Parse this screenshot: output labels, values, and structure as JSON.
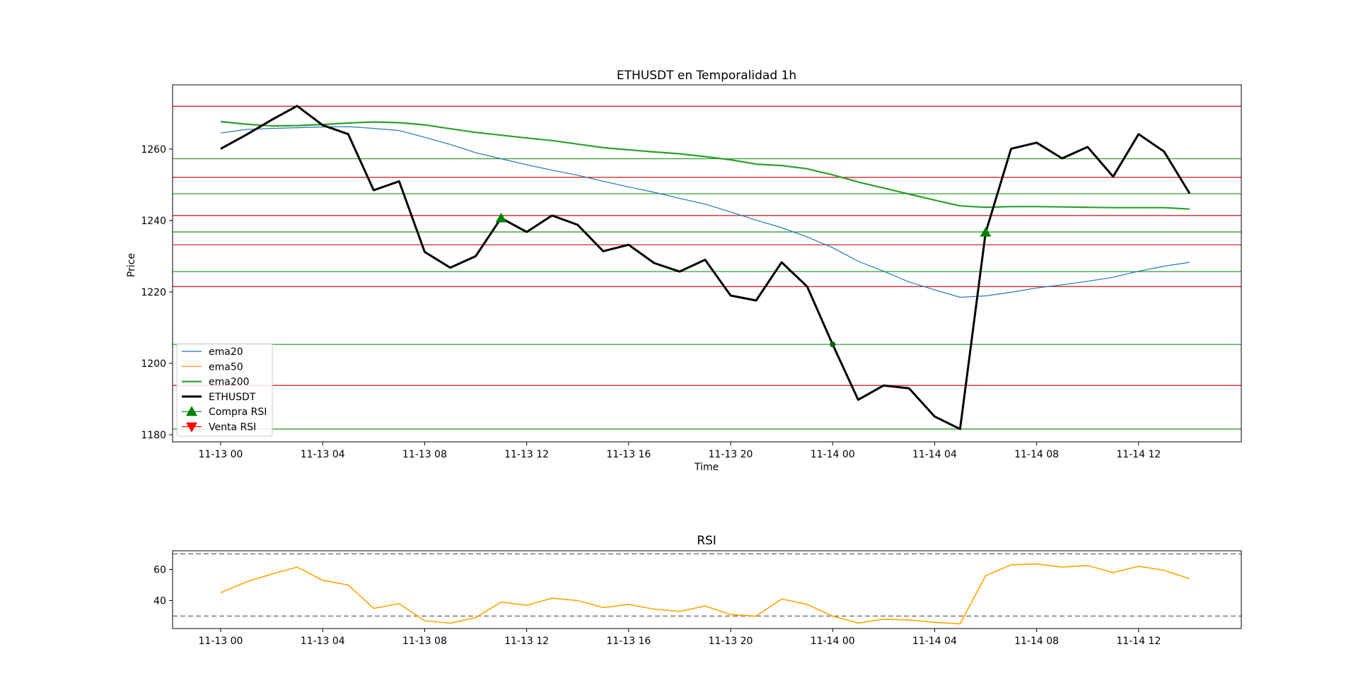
{
  "chart_data": [
    {
      "type": "line",
      "title": "ETHUSDT en Temporalidad 1h",
      "xlabel": "Time",
      "ylabel": "Price",
      "x_start": "2022-11-13 00:00",
      "x_end": "2022-11-14 14:00",
      "x_ticks": [
        "11-13 00",
        "11-13 04",
        "11-13 08",
        "11-13 12",
        "11-13 16",
        "11-13 20",
        "11-14 00",
        "11-14 04",
        "11-14 08",
        "11-14 12"
      ],
      "ylim": [
        1178,
        1278
      ],
      "y_ticks": [
        1180,
        1200,
        1220,
        1240,
        1260
      ],
      "grid": false,
      "legend_position": "lower-left",
      "series": [
        {
          "name": "ema20",
          "color": "#1f77b4",
          "width": 1.2,
          "values": [
            1264.5,
            1265.5,
            1265.8,
            1266.0,
            1266.2,
            1266.3,
            1265.8,
            1265.2,
            1263.3,
            1261.3,
            1259.0,
            1257.3,
            1255.6,
            1254.1,
            1252.7,
            1251.0,
            1249.4,
            1247.9,
            1246.2,
            1244.6,
            1242.4,
            1240.1,
            1238.0,
            1235.4,
            1232.4,
            1228.6,
            1225.8,
            1222.8,
            1220.6,
            1218.5,
            1218.9,
            1219.9,
            1221.1,
            1222.0,
            1223.0,
            1224.1,
            1225.8,
            1227.2,
            1228.3
          ]
        },
        {
          "name": "ema50",
          "color": "#ff7f0e",
          "width": 1.2,
          "values": []
        },
        {
          "name": "ema200",
          "color": "#2ca02c",
          "width": 2.2,
          "values": [
            1267.7,
            1267.0,
            1266.5,
            1266.6,
            1266.9,
            1267.3,
            1267.6,
            1267.4,
            1266.8,
            1265.7,
            1264.7,
            1263.9,
            1263.1,
            1262.4,
            1261.4,
            1260.4,
            1259.8,
            1259.2,
            1258.7,
            1257.9,
            1257.0,
            1255.8,
            1255.4,
            1254.5,
            1252.8,
            1250.8,
            1249.1,
            1247.4,
            1245.7,
            1244.1,
            1243.7,
            1243.9,
            1243.9,
            1243.8,
            1243.7,
            1243.6,
            1243.6,
            1243.6,
            1243.2
          ]
        },
        {
          "name": "ETHUSDT",
          "color": "#000000",
          "width": 3,
          "values": [
            1260.1,
            1264.0,
            1268.2,
            1272.1,
            1266.7,
            1264.2,
            1248.5,
            1251.0,
            1231.2,
            1226.8,
            1230.0,
            1240.7,
            1236.8,
            1241.4,
            1238.8,
            1231.4,
            1233.2,
            1228.1,
            1225.7,
            1229.0,
            1219.0,
            1217.6,
            1228.3,
            1221.5,
            1205.3,
            1189.8,
            1193.8,
            1193.0,
            1185.1,
            1181.6,
            1236.6,
            1260.1,
            1261.8,
            1257.4,
            1260.6,
            1252.3,
            1264.2,
            1259.3,
            1247.6
          ]
        }
      ],
      "markers": [
        {
          "name": "Compra RSI",
          "shape": "triangle-up",
          "color": "#008000",
          "points": [
            {
              "x": 11,
              "y": 1240.6
            },
            {
              "x": 30,
              "y": 1236.6
            }
          ]
        },
        {
          "name": "Venta RSI",
          "shape": "triangle-down",
          "color": "#ff0000",
          "points": []
        }
      ],
      "extra_points": [
        {
          "x": 24,
          "y": 1205.3,
          "color": "#006400"
        }
      ],
      "hlines": [
        {
          "y": 1272.0,
          "color": "#d62728"
        },
        {
          "y": 1257.3,
          "color": "#2ca02c"
        },
        {
          "y": 1252.1,
          "color": "#d62728"
        },
        {
          "y": 1247.5,
          "color": "#2ca02c"
        },
        {
          "y": 1241.4,
          "color": "#d62728"
        },
        {
          "y": 1236.8,
          "color": "#2ca02c"
        },
        {
          "y": 1233.2,
          "color": "#d62728"
        },
        {
          "y": 1225.7,
          "color": "#2ca02c"
        },
        {
          "y": 1221.5,
          "color": "#d62728"
        },
        {
          "y": 1205.3,
          "color": "#2ca02c"
        },
        {
          "y": 1193.8,
          "color": "#d62728"
        },
        {
          "y": 1181.6,
          "color": "#2ca02c"
        }
      ]
    },
    {
      "type": "line",
      "title": "RSI",
      "xlabel": "",
      "ylabel": "",
      "x_ticks": [
        "11-13 00",
        "11-13 04",
        "11-13 08",
        "11-13 12",
        "11-13 16",
        "11-13 20",
        "11-14 00",
        "11-14 04",
        "11-14 08",
        "11-14 12"
      ],
      "ylim": [
        22,
        72
      ],
      "y_ticks": [
        40,
        60
      ],
      "reference_lines": [
        70,
        30
      ],
      "series": [
        {
          "name": "RSI",
          "color": "#ffa500",
          "values": [
            45,
            52,
            57,
            61.5,
            53,
            50,
            35,
            38,
            27,
            25.5,
            29,
            39,
            37,
            41.5,
            40,
            35.5,
            37.5,
            34.5,
            33,
            36.5,
            31,
            30,
            41,
            37.5,
            30,
            25.5,
            28,
            27.5,
            26,
            25,
            56,
            63,
            63.5,
            61.5,
            62.5,
            58,
            62,
            59.5,
            54
          ]
        }
      ]
    }
  ]
}
